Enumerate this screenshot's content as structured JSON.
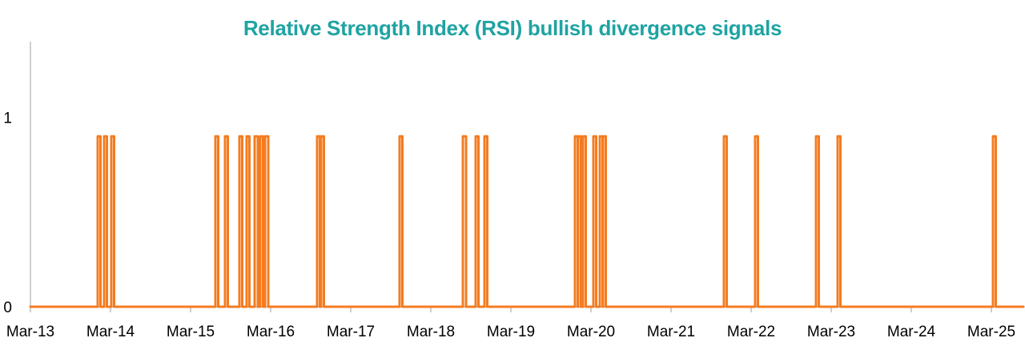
{
  "colors": {
    "title": "#1fa3a3",
    "series": "#f47c20",
    "axis": "#bfbfbf",
    "text": "#000000",
    "background": "#ffffff"
  },
  "chart_data": {
    "type": "line",
    "title": "Relative Strength Index (RSI) bullish divergence signals",
    "xlabel": "",
    "ylabel": "",
    "grid": false,
    "legend": "none",
    "x_unit": "years since Mar-13",
    "xlim": [
      0,
      12.4
    ],
    "ylim": [
      0,
      1.4
    ],
    "x_ticks": [
      {
        "label": "Mar-13",
        "x": 0
      },
      {
        "label": "Mar-14",
        "x": 1
      },
      {
        "label": "Mar-15",
        "x": 2
      },
      {
        "label": "Mar-16",
        "x": 3
      },
      {
        "label": "Mar-17",
        "x": 4
      },
      {
        "label": "Mar-18",
        "x": 5
      },
      {
        "label": "Mar-19",
        "x": 6
      },
      {
        "label": "Mar-20",
        "x": 7
      },
      {
        "label": "Mar-21",
        "x": 8
      },
      {
        "label": "Mar-22",
        "x": 9
      },
      {
        "label": "Mar-23",
        "x": 10
      },
      {
        "label": "Mar-24",
        "x": 11
      },
      {
        "label": "Mar-25",
        "x": 12
      }
    ],
    "y_ticks": [
      {
        "label": "0",
        "y": 0
      },
      {
        "label": "1",
        "y": 1
      }
    ],
    "series": [
      {
        "name": "RSI bullish divergence signal",
        "signal_value": 0.9,
        "signals": [
          {
            "start": 0.84,
            "end": 0.86
          },
          {
            "start": 0.92,
            "end": 0.94
          },
          {
            "start": 1.01,
            "end": 1.03
          },
          {
            "start": 2.31,
            "end": 2.33
          },
          {
            "start": 2.43,
            "end": 2.45
          },
          {
            "start": 2.61,
            "end": 2.63
          },
          {
            "start": 2.7,
            "end": 2.72
          },
          {
            "start": 2.8,
            "end": 2.84
          },
          {
            "start": 2.87,
            "end": 2.89
          },
          {
            "start": 2.93,
            "end": 2.97
          },
          {
            "start": 3.58,
            "end": 3.6
          },
          {
            "start": 3.63,
            "end": 3.65
          },
          {
            "start": 4.61,
            "end": 4.63
          },
          {
            "start": 5.4,
            "end": 5.44
          },
          {
            "start": 5.56,
            "end": 5.58
          },
          {
            "start": 5.67,
            "end": 5.69
          },
          {
            "start": 6.8,
            "end": 6.82
          },
          {
            "start": 6.84,
            "end": 6.86
          },
          {
            "start": 6.9,
            "end": 6.92
          },
          {
            "start": 7.03,
            "end": 7.05
          },
          {
            "start": 7.11,
            "end": 7.13
          },
          {
            "start": 7.15,
            "end": 7.17
          },
          {
            "start": 8.66,
            "end": 8.68
          },
          {
            "start": 9.05,
            "end": 9.07
          },
          {
            "start": 9.81,
            "end": 9.83
          },
          {
            "start": 10.08,
            "end": 10.1
          },
          {
            "start": 12.02,
            "end": 12.04
          }
        ]
      }
    ]
  }
}
